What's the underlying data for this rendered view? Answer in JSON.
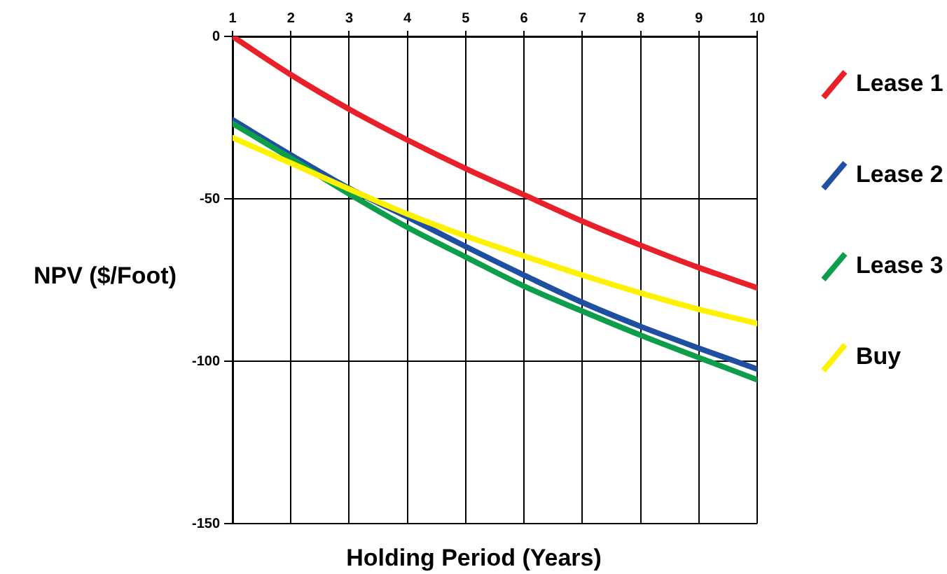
{
  "chart_data": {
    "type": "line",
    "xlabel": "Holding Period (Years)",
    "ylabel": "NPV ($/Foot)",
    "x": [
      1,
      2,
      3,
      4,
      5,
      6,
      7,
      8,
      9,
      10
    ],
    "series": [
      {
        "name": "Lease 1",
        "color": "#e8202a",
        "values": [
          0,
          -11.8,
          -22.4,
          -31.9,
          -40.7,
          -48.8,
          -56.9,
          -64.3,
          -71.2,
          -77.4
        ]
      },
      {
        "name": "Lease 2",
        "color": "#1f4fa0",
        "values": [
          -25.7,
          -36.5,
          -46.8,
          -55.6,
          -64.7,
          -73.5,
          -81.9,
          -89.3,
          -96,
          -102.4
        ]
      },
      {
        "name": "Lease 3",
        "color": "#0c9e4a",
        "values": [
          -26.8,
          -37.5,
          -48.5,
          -58.8,
          -67.9,
          -76.9,
          -84.6,
          -92,
          -98.9,
          -105.7
        ]
      },
      {
        "name": "Buy",
        "color": "#fff200",
        "values": [
          -31.2,
          -39,
          -47,
          -54.7,
          -61.5,
          -67.6,
          -73.5,
          -79,
          -84,
          -88.4
        ]
      }
    ],
    "xlim": [
      1,
      10
    ],
    "xticks": [
      1,
      2,
      3,
      4,
      5,
      6,
      7,
      8,
      9,
      10
    ],
    "ylim": [
      -150,
      0
    ],
    "yticks": [
      0,
      -50,
      -100,
      -150
    ],
    "grid": true,
    "legend": "right",
    "marker": "none",
    "line_style": "solid"
  }
}
